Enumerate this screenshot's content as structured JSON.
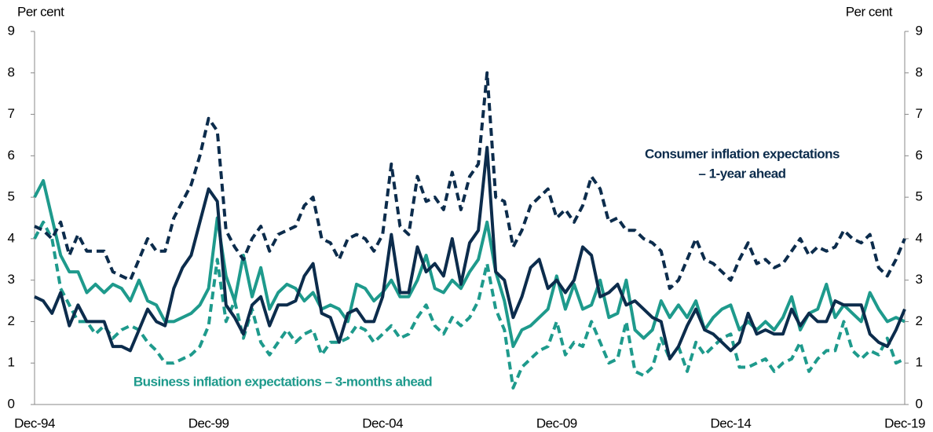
{
  "chart_data": {
    "type": "line",
    "ylabel": "Per cent",
    "y2label": "Per cent",
    "categories": [
      "Dec-94",
      null,
      null,
      null,
      null,
      null,
      null,
      null,
      null,
      null,
      null,
      null,
      null,
      null,
      null,
      null,
      null,
      null,
      null,
      null,
      "Dec-99",
      null,
      null,
      null,
      null,
      null,
      null,
      null,
      null,
      null,
      null,
      null,
      null,
      null,
      null,
      null,
      null,
      null,
      null,
      null,
      "Dec-04",
      null,
      null,
      null,
      null,
      null,
      null,
      null,
      null,
      null,
      null,
      null,
      null,
      null,
      null,
      null,
      null,
      null,
      null,
      null,
      "Dec-09",
      null,
      null,
      null,
      null,
      null,
      null,
      null,
      null,
      null,
      null,
      null,
      null,
      null,
      null,
      null,
      null,
      null,
      null,
      null,
      "Dec-14",
      null,
      null,
      null,
      null,
      null,
      null,
      null,
      null,
      null,
      null,
      null,
      null,
      null,
      null,
      null,
      null,
      null,
      null,
      null,
      "Dec-19"
    ],
    "ylim": [
      0,
      9
    ],
    "yticks": [
      0,
      1,
      2,
      3,
      4,
      5,
      6,
      7,
      8,
      9
    ],
    "y2lim": [
      0,
      9
    ],
    "y2ticks": [
      0,
      1,
      2,
      3,
      4,
      5,
      6,
      7,
      8,
      9
    ],
    "series": [
      {
        "color": "#0c2c4c",
        "dashed": false,
        "values": [
          2.6,
          2.5,
          2.2,
          2.7,
          1.9,
          2.4,
          2.0,
          2.0,
          2.0,
          1.4,
          1.4,
          1.3,
          1.8,
          2.3,
          2.0,
          1.9,
          2.8,
          3.3,
          3.6,
          4.4,
          5.2,
          4.9,
          2.4,
          2.1,
          1.7,
          2.4,
          2.6,
          1.9,
          2.4,
          2.4,
          2.5,
          3.1,
          3.4,
          2.2,
          2.1,
          1.5,
          2.2,
          2.3,
          2.0,
          2.0,
          2.6,
          4.1,
          2.7,
          2.7,
          3.8,
          3.2,
          3.4,
          3.1,
          4.0,
          2.9,
          3.9,
          4.2,
          6.2,
          3.2,
          3.0,
          2.1,
          2.6,
          3.3,
          3.5,
          2.8,
          3.0,
          2.7,
          3.0,
          3.8,
          3.6,
          2.6,
          2.7,
          2.9,
          2.4,
          2.5,
          2.3,
          2.1,
          2.0,
          1.1,
          1.4,
          1.9,
          2.3,
          1.8,
          1.7,
          1.5,
          1.3,
          1.5,
          2.2,
          1.7,
          1.8,
          1.7,
          1.7,
          2.3,
          1.9,
          2.2,
          2.0,
          2.0,
          2.5,
          2.4,
          2.4,
          2.4,
          1.7,
          1.5,
          1.4,
          1.8,
          2.3
        ]
      },
      {
        "color": "#0c2c4c",
        "dashed": true,
        "values": [
          4.3,
          4.2,
          4.0,
          4.4,
          3.6,
          4.1,
          3.7,
          3.7,
          3.7,
          3.2,
          3.1,
          3.0,
          3.5,
          4.0,
          3.7,
          3.7,
          4.5,
          4.9,
          5.3,
          6.0,
          6.9,
          6.6,
          4.2,
          3.8,
          3.5,
          4.0,
          4.3,
          3.7,
          4.1,
          4.2,
          4.3,
          4.8,
          5.0,
          4.0,
          3.9,
          3.5,
          4.0,
          4.1,
          4.0,
          3.7,
          4.1,
          5.8,
          4.3,
          4.1,
          5.5,
          4.9,
          5.0,
          4.7,
          5.6,
          4.7,
          5.5,
          5.8,
          8.0,
          5.0,
          4.9,
          3.8,
          4.2,
          4.8,
          5.0,
          5.2,
          4.5,
          4.7,
          4.4,
          4.8,
          5.5,
          5.2,
          4.4,
          4.5,
          4.2,
          4.2,
          4.0,
          3.9,
          3.7,
          2.8,
          3.0,
          3.5,
          4.0,
          3.5,
          3.4,
          3.2,
          3.0,
          3.5,
          3.9,
          3.4,
          3.5,
          3.3,
          3.4,
          3.7,
          4.0,
          3.6,
          3.8,
          3.7,
          3.8,
          4.2,
          4.0,
          3.9,
          4.1,
          3.3,
          3.1,
          3.5,
          4.0
        ]
      },
      {
        "color": "#1e9a8c",
        "dashed": false,
        "values": [
          5.0,
          5.4,
          4.5,
          3.6,
          3.2,
          3.2,
          2.7,
          2.9,
          2.7,
          2.9,
          2.8,
          2.5,
          3.0,
          2.5,
          2.4,
          2.0,
          2.0,
          2.1,
          2.2,
          2.4,
          2.8,
          4.5,
          3.1,
          2.5,
          3.6,
          2.6,
          3.3,
          2.3,
          2.7,
          2.9,
          2.8,
          2.5,
          2.7,
          2.3,
          2.4,
          2.3,
          2.0,
          2.9,
          2.8,
          2.5,
          2.7,
          3.0,
          2.6,
          2.6,
          3.0,
          3.6,
          2.8,
          2.7,
          3.0,
          2.8,
          3.2,
          3.5,
          4.4,
          3.2,
          2.5,
          1.4,
          1.8,
          1.9,
          2.1,
          2.3,
          3.1,
          2.3,
          2.9,
          2.3,
          2.4,
          3.0,
          2.1,
          2.2,
          3.0,
          1.8,
          1.6,
          1.8,
          2.5,
          2.1,
          2.4,
          2.1,
          2.5,
          1.8,
          2.1,
          2.3,
          2.4,
          1.8,
          2.0,
          1.8,
          2.0,
          1.8,
          2.1,
          2.6,
          1.8,
          2.2,
          2.3,
          2.9,
          2.1,
          2.4,
          2.2,
          2.0,
          2.7,
          2.3,
          2.0,
          2.1,
          2.0
        ]
      },
      {
        "color": "#1e9a8c",
        "dashed": true,
        "values": [
          4.0,
          4.4,
          4.0,
          2.8,
          2.4,
          2.0,
          2.0,
          1.7,
          1.9,
          1.6,
          1.8,
          1.9,
          1.8,
          1.5,
          1.3,
          1.0,
          1.0,
          1.1,
          1.2,
          1.4,
          1.9,
          3.5,
          2.0,
          2.5,
          1.6,
          2.3,
          1.5,
          1.2,
          1.5,
          1.8,
          1.5,
          1.7,
          1.8,
          1.2,
          1.5,
          1.5,
          1.6,
          1.9,
          1.8,
          1.5,
          1.7,
          1.9,
          1.6,
          1.7,
          2.1,
          2.4,
          1.9,
          1.7,
          2.1,
          1.9,
          2.1,
          2.5,
          3.4,
          2.3,
          1.8,
          0.4,
          0.9,
          1.1,
          1.3,
          1.4,
          2.0,
          1.2,
          1.5,
          1.4,
          2.0,
          1.5,
          1.0,
          1.1,
          2.0,
          0.8,
          0.7,
          0.9,
          1.6,
          1.1,
          1.4,
          0.8,
          1.5,
          1.2,
          1.4,
          1.6,
          1.7,
          0.9,
          0.9,
          1.0,
          1.1,
          0.8,
          1.0,
          1.1,
          1.5,
          0.8,
          1.1,
          1.3,
          1.3,
          2.0,
          1.3,
          1.1,
          1.3,
          1.2,
          1.6,
          1.0,
          1.1
        ]
      }
    ],
    "annotations": [
      {
        "text": "Consumer inflation expectations",
        "color": "#0c2c4c"
      },
      {
        "text": "– 1-year ahead",
        "color": "#0c2c4c"
      },
      {
        "text": "Business inflation expectations – 3-months ahead",
        "color": "#1e9a8c"
      }
    ]
  }
}
